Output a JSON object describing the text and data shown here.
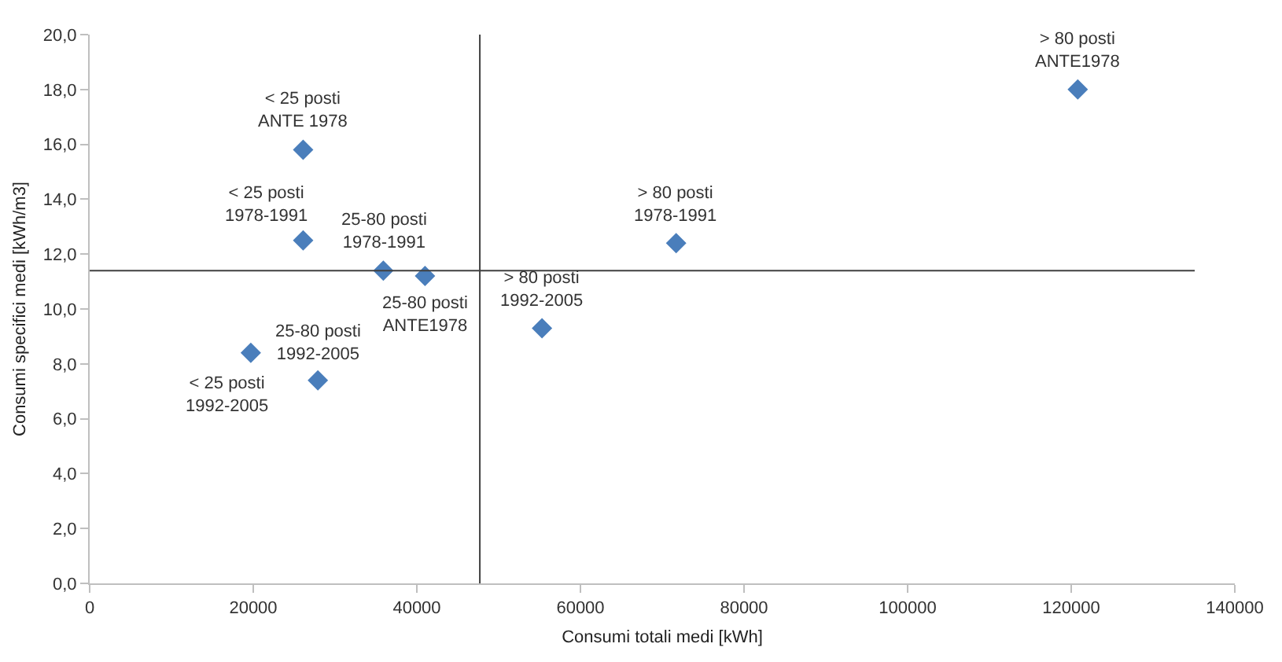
{
  "chart_data": {
    "type": "scatter",
    "xlabel": "Consumi totali medi [kWh]",
    "ylabel": "Consumi specifici medi [kWh/m3]",
    "x": [
      26100,
      26100,
      35900,
      41000,
      19700,
      27900,
      55300,
      71700,
      120800
    ],
    "series": [
      {
        "color": "#4a7ebb",
        "values": [
          15.8,
          12.5,
          11.4,
          11.2,
          8.4,
          7.4,
          9.3,
          12.4,
          18.0
        ]
      }
    ],
    "marker": "diamond",
    "xlim": [
      0,
      140000
    ],
    "xticks": [
      0,
      20000,
      40000,
      60000,
      80000,
      100000,
      120000,
      140000
    ],
    "ylim": [
      0,
      20
    ],
    "yticks": [
      {
        "value": 0,
        "label": "0,0"
      },
      {
        "value": 2,
        "label": "2,0"
      },
      {
        "value": 4,
        "label": "4,0"
      },
      {
        "value": 6,
        "label": "6,0"
      },
      {
        "value": 8,
        "label": "8,0"
      },
      {
        "value": 10,
        "label": "10,0"
      },
      {
        "value": 12,
        "label": "12,0"
      },
      {
        "value": 14,
        "label": "14,0"
      },
      {
        "value": 16,
        "label": "16,0"
      },
      {
        "value": 18,
        "label": "18,0"
      },
      {
        "value": 20,
        "label": "20,0"
      }
    ],
    "ref_lines": [
      {
        "axis": "x",
        "value": 47700,
        "color": "#404040"
      },
      {
        "axis": "y",
        "value": 11.4,
        "color": "#404040"
      }
    ],
    "annotations": [
      {
        "text": "< 25 posti\nANTE 1978",
        "x": 26100,
        "y": 15.8
      },
      {
        "text": "< 25 posti\n1978-1991",
        "x": 26100,
        "y": 12.5
      },
      {
        "text": "25-80 posti\n1978-1991",
        "x": 35900,
        "y": 11.4
      },
      {
        "text": "25-80 posti\nANTE1978",
        "x": 41000,
        "y": 11.2
      },
      {
        "text": "< 25 posti\n1992-2005",
        "x": 19700,
        "y": 8.4
      },
      {
        "text": "25-80 posti\n1992-2005",
        "x": 27900,
        "y": 7.4
      },
      {
        "text": "> 80 posti\n1992-2005",
        "x": 55300,
        "y": 9.3
      },
      {
        "text": "> 80 posti\n1978-1991",
        "x": 71700,
        "y": 12.4
      },
      {
        "text": "> 80 posti\nANTE1978",
        "x": 120800,
        "y": 18.0
      }
    ],
    "grid": false
  }
}
